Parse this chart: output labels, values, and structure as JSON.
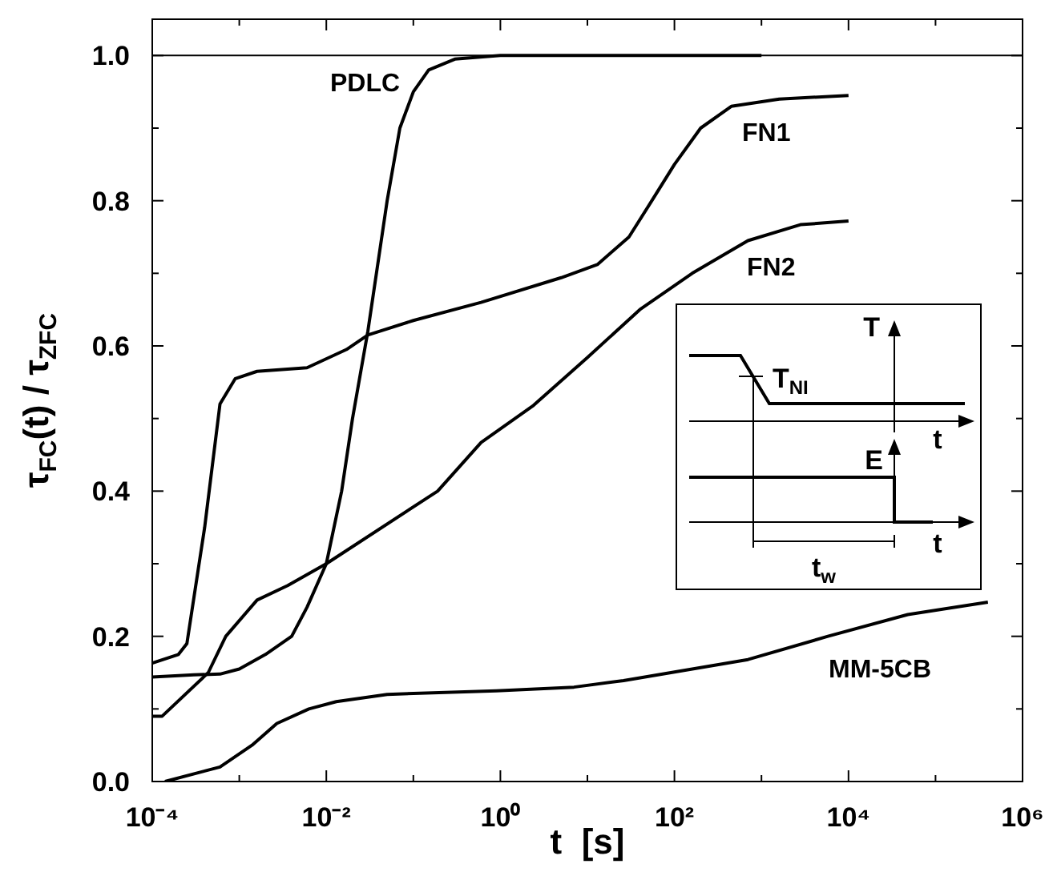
{
  "chart_data": {
    "type": "line",
    "xlabel": "t  [s]",
    "ylabel": "τ$_{FC}$(t) / τ$_{ZFC}$",
    "log": "x",
    "marker": "none",
    "line_style": "solid",
    "xlim": [
      0.0001,
      1000000
    ],
    "xticks": [
      {
        "value": 0.0001,
        "label": "10⁻⁴"
      },
      {
        "value": 0.001,
        "label": null
      },
      {
        "value": 0.01,
        "label": "10⁻²"
      },
      {
        "value": 0.1,
        "label": null
      },
      {
        "value": 1,
        "label": "10⁰"
      },
      {
        "value": 10,
        "label": null
      },
      {
        "value": 100,
        "label": "10²"
      },
      {
        "value": 1000,
        "label": null
      },
      {
        "value": 10000,
        "label": "10⁴"
      },
      {
        "value": 100000,
        "label": null
      },
      {
        "value": 1000000,
        "label": "10⁶"
      }
    ],
    "ylim": [
      0,
      1.05
    ],
    "yticks": [
      {
        "value": 0,
        "label": "0.0"
      },
      {
        "value": 0.1,
        "label": null
      },
      0.2,
      {
        "value": 0.3,
        "label": null
      },
      0.4,
      {
        "value": 0.5,
        "label": null
      },
      0.6,
      {
        "value": 0.7,
        "label": null
      },
      0.8,
      {
        "value": 0.9,
        "label": null
      },
      {
        "value": 1,
        "label": "1.0"
      }
    ],
    "ref_lines": [
      {
        "axis": "y",
        "value": 1,
        "color": "#000000"
      }
    ],
    "annotations": [
      "T",
      "T$_{NI}$",
      "t",
      "E",
      "t",
      "t$_{w}$"
    ],
    "series": [
      {
        "name": "PDLC",
        "color": "#000000",
        "x": [
          0.0001,
          0.0003,
          0.0006,
          0.001,
          0.002,
          0.004,
          0.006,
          0.01,
          0.015,
          0.02,
          0.03,
          0.05,
          0.07,
          0.1,
          0.15,
          0.3,
          1,
          10,
          100,
          1000
        ],
        "values": [
          0.144,
          0.147,
          0.148,
          0.155,
          0.175,
          0.2,
          0.24,
          0.3,
          0.4,
          0.5,
          0.62,
          0.8,
          0.9,
          0.95,
          0.98,
          0.995,
          1.0,
          1.0,
          1.0,
          1.0
        ]
      },
      {
        "name": "FN1",
        "color": "#000000",
        "x": [
          0.0001,
          0.0002,
          0.00025,
          0.0004,
          0.0006,
          0.0009,
          0.0016,
          0.006,
          0.017,
          0.03,
          0.1,
          0.6,
          5,
          13,
          30,
          55,
          100,
          200,
          450,
          1600,
          10000
        ],
        "values": [
          0.163,
          0.175,
          0.19,
          0.35,
          0.52,
          0.555,
          0.565,
          0.57,
          0.595,
          0.615,
          0.635,
          0.66,
          0.694,
          0.712,
          0.75,
          0.8,
          0.85,
          0.9,
          0.93,
          0.94,
          0.945
        ]
      },
      {
        "name": "FN2",
        "color": "#000000",
        "x": [
          0.0001,
          0.00013,
          0.00044,
          0.0007,
          0.0016,
          0.0036,
          0.01,
          0.19,
          0.6,
          2.4,
          10,
          40,
          160,
          700,
          2800,
          10000
        ],
        "values": [
          0.09,
          0.09,
          0.15,
          0.2,
          0.25,
          0.27,
          0.3,
          0.4,
          0.467,
          0.518,
          0.584,
          0.65,
          0.7,
          0.745,
          0.767,
          0.772
        ]
      },
      {
        "name": "MM-5CB",
        "color": "#000000",
        "x": [
          0.00014,
          0.0006,
          0.0014,
          0.0027,
          0.0063,
          0.013,
          0.05,
          0.9,
          7,
          26,
          700,
          5800,
          48000,
          400000
        ],
        "values": [
          0.0,
          0.02,
          0.05,
          0.08,
          0.1,
          0.11,
          0.12,
          0.125,
          0.13,
          0.139,
          0.168,
          0.2,
          0.23,
          0.247
        ]
      }
    ]
  }
}
